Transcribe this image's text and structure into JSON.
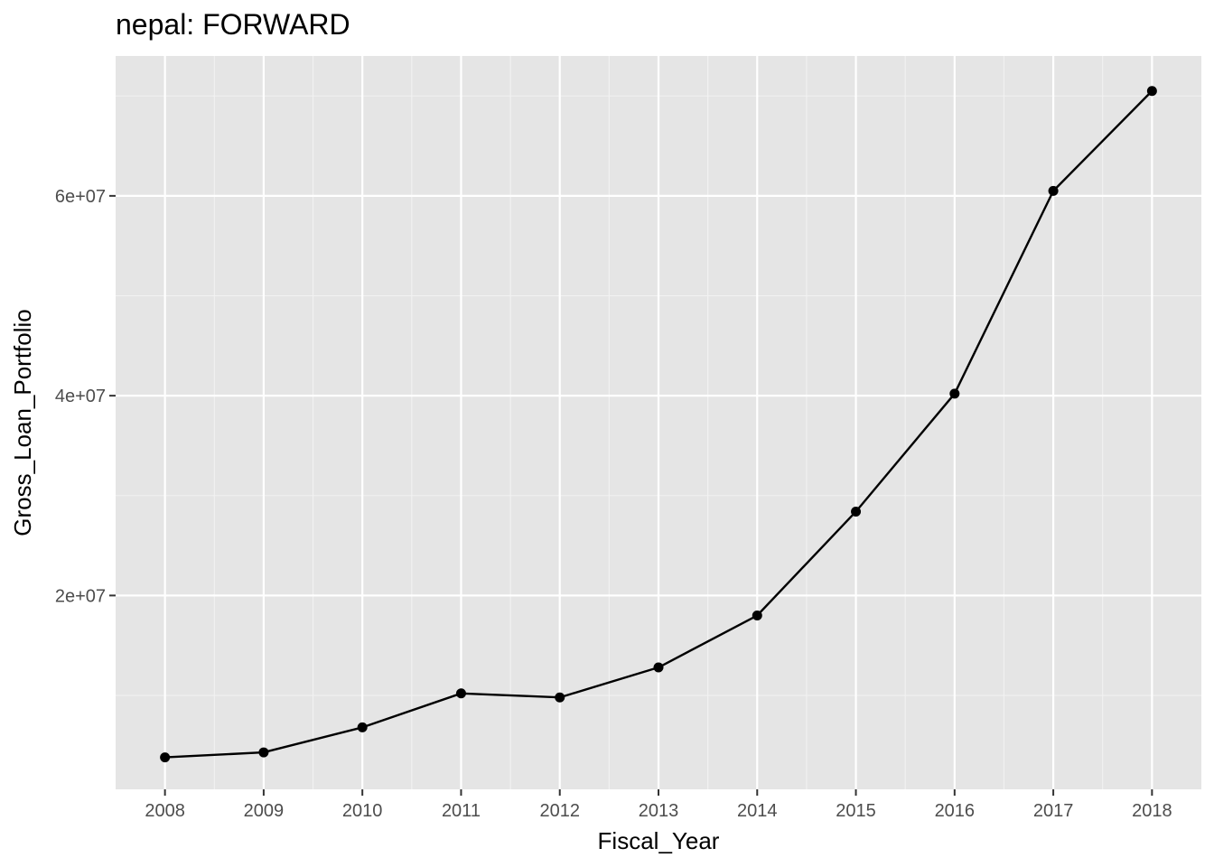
{
  "chart_data": {
    "type": "line",
    "title": "nepal:  FORWARD",
    "xlabel": "Fiscal_Year",
    "ylabel": "Gross_Loan_Portfolio",
    "x": [
      2008,
      2009,
      2010,
      2011,
      2012,
      2013,
      2014,
      2015,
      2016,
      2017,
      2018
    ],
    "series": [
      {
        "values": [
          3800000,
          4300000,
          6800000,
          10200000,
          9800000,
          12800000,
          18000000,
          28400000,
          40200000,
          60500000,
          70500000
        ]
      }
    ],
    "xlim": [
      2007.5,
      2018.5
    ],
    "ylim": [
      600000,
      74000000
    ],
    "y_ticks": [
      20000000,
      40000000,
      60000000
    ],
    "y_tick_labels": [
      "2e+07",
      "4e+07",
      "6e+07"
    ],
    "x_tick_labels": [
      "2008",
      "2009",
      "2010",
      "2011",
      "2012",
      "2013",
      "2014",
      "2015",
      "2016",
      "2017",
      "2018"
    ],
    "grid": true,
    "legend": "none",
    "colors": {
      "panel_background": "#e5e5e5",
      "grid_major": "#ffffff",
      "grid_minor": "#f2f2f2",
      "line": "#000000",
      "point": "#000000",
      "tick_label": "#4d4d4d",
      "tick_mark": "#333333"
    }
  }
}
